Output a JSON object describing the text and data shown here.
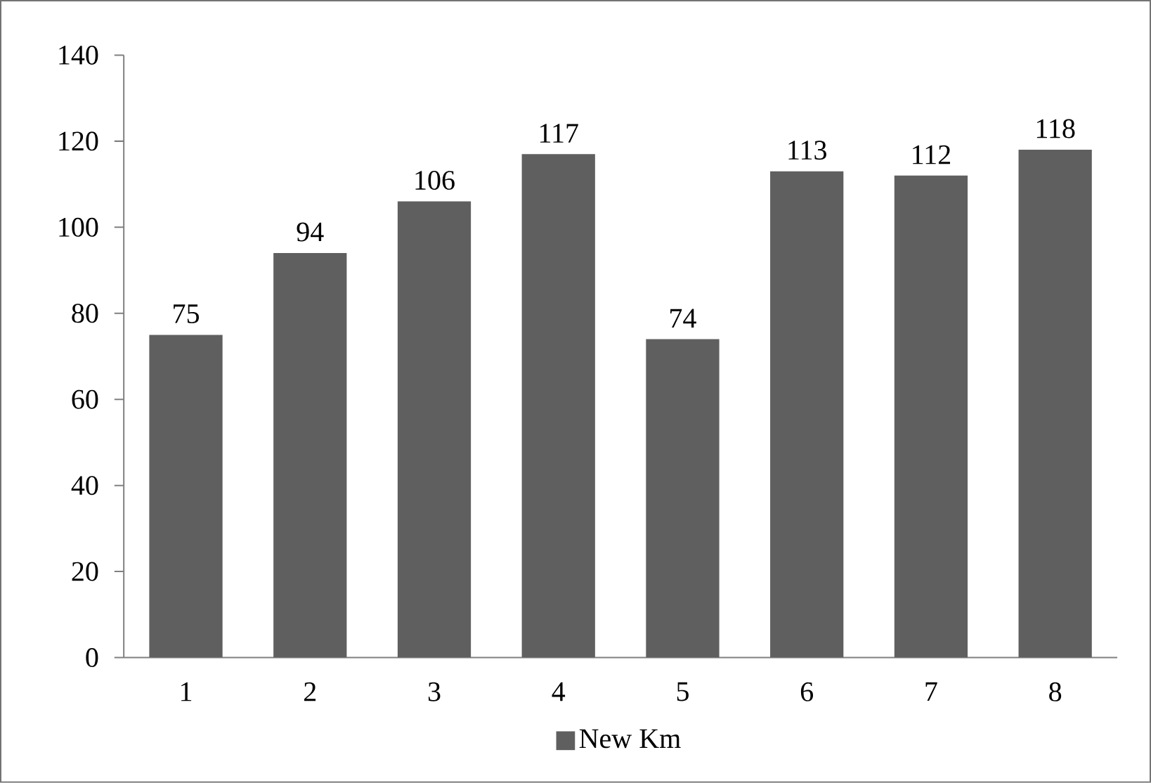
{
  "chart_data": {
    "type": "bar",
    "categories": [
      "1",
      "2",
      "3",
      "4",
      "5",
      "6",
      "7",
      "8"
    ],
    "series": [
      {
        "name": "New Km",
        "color": "#5f5f5f",
        "values": [
          75,
          94,
          106,
          117,
          74,
          113,
          112,
          118
        ]
      }
    ],
    "ylim": [
      0,
      140
    ],
    "yticks": [
      0,
      20,
      40,
      60,
      80,
      100,
      120,
      140
    ],
    "data_labels": true,
    "legend": "bottom",
    "grid": false
  }
}
